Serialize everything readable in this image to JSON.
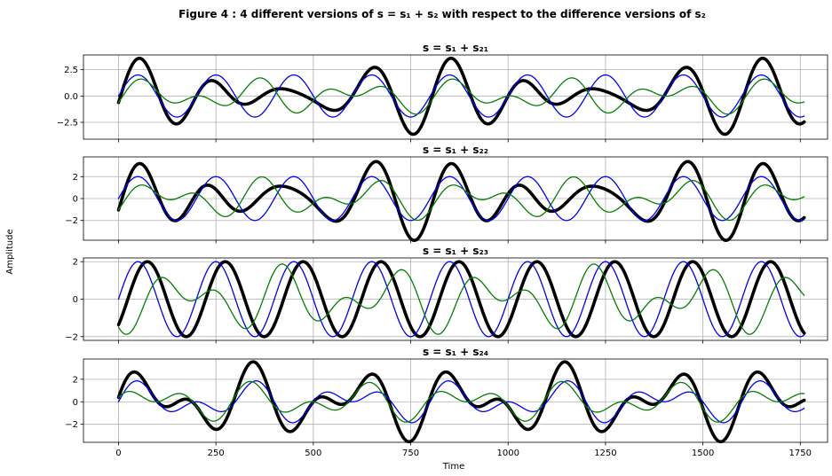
{
  "figure": {
    "title": "Figure 4 : 4 different versions of s = s₁ + s₂ with respect to the difference versions of s₂",
    "ylabel": "Amplitude",
    "xlabel": "Time"
  },
  "colors": {
    "s1": "#0000ff",
    "s2": "#008000",
    "s": "#000000",
    "grid": "#b0b0b0"
  },
  "chart_data": [
    {
      "type": "line",
      "title": "s = s₁ + s₂₁",
      "xlim": [
        -90,
        1820
      ],
      "ylim": [
        -4.1,
        3.9
      ],
      "xticks": [
        0,
        250,
        500,
        750,
        1000,
        1250,
        1500,
        1750
      ],
      "xticklabels": [],
      "yticks": [
        2.5,
        0.0,
        -2.5
      ],
      "yticklabels": [
        "2.5",
        "0.0",
        "−2.5"
      ],
      "grid": true,
      "x_range": [
        0,
        1760
      ],
      "series": [
        {
          "role": "s1",
          "formula": "2*sin(2*pi*t/200)"
        },
        {
          "role": "s2",
          "formula": "1.8*sin(2*pi*t/200 - 0.35)*cos(2*pi*t/800)"
        },
        {
          "role": "s",
          "formula": "s1 + s2"
        }
      ]
    },
    {
      "type": "line",
      "title": "s = s₁ + s₂₂",
      "xlim": [
        -90,
        1820
      ],
      "ylim": [
        -3.8,
        3.8
      ],
      "xticks": [
        0,
        250,
        500,
        750,
        1000,
        1250,
        1500,
        1750
      ],
      "xticklabels": [],
      "yticks": [
        2,
        0,
        -2
      ],
      "yticklabels": [
        "2",
        "0",
        "−2"
      ],
      "grid": true,
      "x_range": [
        0,
        1760
      ],
      "series": [
        {
          "role": "s1",
          "formula": "2*sin(2*pi*t/200)"
        },
        {
          "role": "s2",
          "formula": "2*sin(2*pi*t/200 - 0.6)*cos(2*pi*t/800 + 0.4)"
        },
        {
          "role": "s",
          "formula": "s1 + s2"
        }
      ]
    },
    {
      "type": "line",
      "title": "s = s₁ + s₂₃",
      "xlim": [
        -90,
        1820
      ],
      "ylim": [
        -2.2,
        2.2
      ],
      "xticks": [
        0,
        250,
        500,
        750,
        1000,
        1250,
        1500,
        1750
      ],
      "xticklabels": [],
      "yticks": [
        2,
        0,
        -2
      ],
      "yticklabels": [
        "2",
        "0",
        "−2"
      ],
      "grid": true,
      "x_range": [
        0,
        1760
      ],
      "series": [
        {
          "role": "s1",
          "formula": "2*sin(2*pi*t/200)"
        },
        {
          "role": "s2",
          "formula": "-1.9*sin(2*pi*t/200 + 0.9)*cos(2*pi*t/800)"
        },
        {
          "role": "s",
          "formula": "2*sin(2*pi*t/200 - 0.75)"
        }
      ]
    },
    {
      "type": "line",
      "title": "s = s₁ + s₂₄",
      "xlim": [
        -90,
        1820
      ],
      "ylim": [
        -3.6,
        3.8
      ],
      "xticks": [
        0,
        250,
        500,
        750,
        1000,
        1250,
        1500,
        1750
      ],
      "xticklabels": [
        "0",
        "250",
        "500",
        "750",
        "1000",
        "1250",
        "1500",
        "1750"
      ],
      "yticks": [
        2,
        0,
        -2
      ],
      "yticklabels": [
        "2",
        "0",
        "−2"
      ],
      "grid": true,
      "x_range": [
        0,
        1760
      ],
      "series": [
        {
          "role": "s1",
          "formula": "2*sin(2*pi*t/200)*cos(2*pi*t/800)"
        },
        {
          "role": "s2",
          "formula": "1.9*sin(2*pi*t/200 + 0.3)*cos(2*pi*t/800 + 0.8)"
        },
        {
          "role": "s",
          "formula": "s1 + s2"
        }
      ]
    }
  ]
}
